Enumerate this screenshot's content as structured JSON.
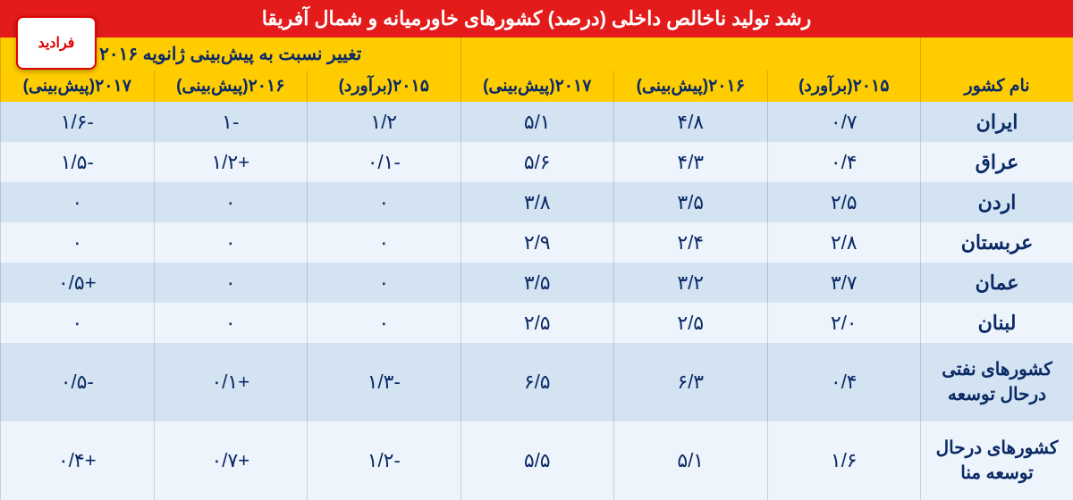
{
  "colors": {
    "title_bg": "#e31b1b",
    "title_text": "#ffffff",
    "header_bg": "#ffcc00",
    "header_text": "#0a2a66",
    "row_even": "#d3e3f2",
    "row_odd": "#eef4fb",
    "data_text": "#0a2a66",
    "border": "#c8d4e4"
  },
  "title": "رشد تولید ناخالص داخلی (درصد) کشورهای خاورمیانه و شمال آفریقا",
  "group_header": {
    "change": "تغییر نسبت به پیش‌بینی ژانویه ۲۰۱۶",
    "blank": ""
  },
  "columns": [
    "نام کشور",
    "۲۰۱۵(برآورد)",
    "۲۰۱۶(پیش‌بینی)",
    "۲۰۱۷(پیش‌بینی)",
    "۲۰۱۵(برآورد)",
    "۲۰۱۶(پیش‌بینی)",
    "۲۰۱۷(پیش‌بینی)"
  ],
  "rows": [
    {
      "country": "ایران",
      "c1": "۰/۷",
      "c2": "۴/۸",
      "c3": "۵/۱",
      "c4": "۱/۲",
      "c5": "-۱",
      "c6": "-۱/۶"
    },
    {
      "country": "عراق",
      "c1": "۰/۴",
      "c2": "۴/۳",
      "c3": "۵/۶",
      "c4": "-۰/۱",
      "c5": "+۱/۲",
      "c6": "-۱/۵"
    },
    {
      "country": "اردن",
      "c1": "۲/۵",
      "c2": "۳/۵",
      "c3": "۳/۸",
      "c4": "۰",
      "c5": "۰",
      "c6": "۰"
    },
    {
      "country": "عربستان",
      "c1": "۲/۸",
      "c2": "۲/۴",
      "c3": "۲/۹",
      "c4": "۰",
      "c5": "۰",
      "c6": "۰"
    },
    {
      "country": "عمان",
      "c1": "۳/۷",
      "c2": "۳/۲",
      "c3": "۳/۵",
      "c4": "۰",
      "c5": "۰",
      "c6": "+۰/۵"
    },
    {
      "country": "لبنان",
      "c1": "۲/۰",
      "c2": "۲/۵",
      "c3": "۲/۵",
      "c4": "۰",
      "c5": "۰",
      "c6": "۰"
    },
    {
      "country": "کشورهای نفتی درحال توسعه",
      "c1": "۰/۴",
      "c2": "۶/۳",
      "c3": "۶/۵",
      "c4": "-۱/۳",
      "c5": "+۰/۱",
      "c6": "-۰/۵"
    },
    {
      "country": "کشورهای درحال توسعه منا",
      "c1": "۱/۶",
      "c2": "۵/۱",
      "c3": "۵/۵",
      "c4": "-۱/۲",
      "c5": "+۰/۷",
      "c6": "+۰/۴"
    }
  ],
  "logo_text": "فرادید",
  "row_heights": {
    "short": 45,
    "tall": 88
  }
}
